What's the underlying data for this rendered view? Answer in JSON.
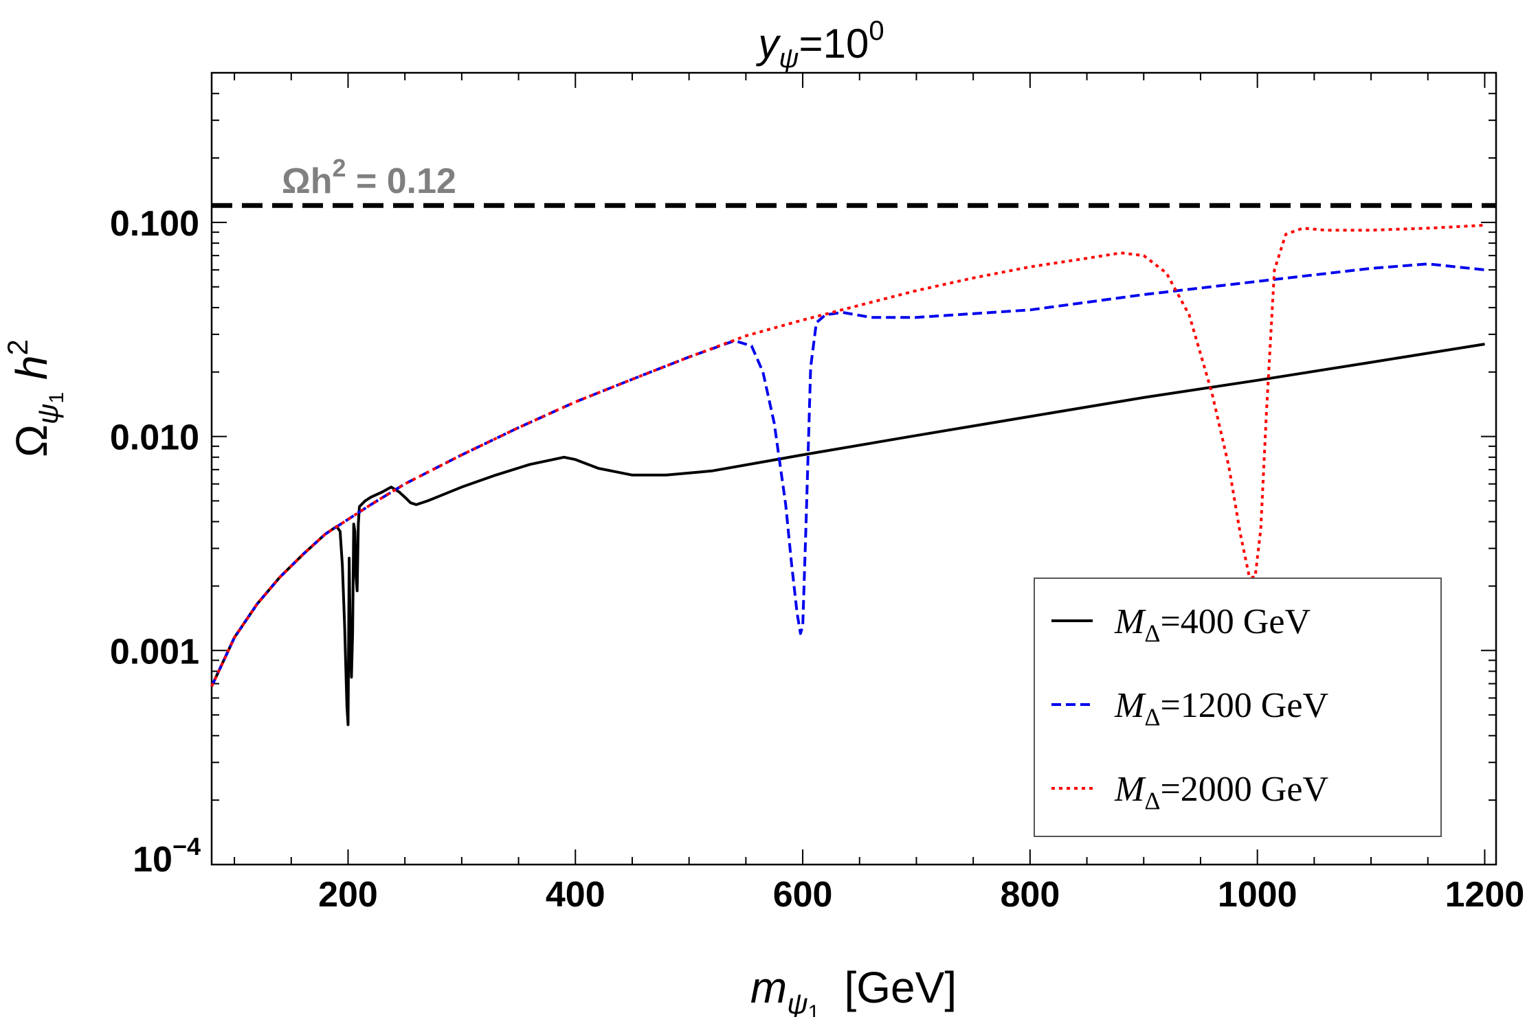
{
  "chart_data": {
    "type": "line",
    "title": {
      "main": "y",
      "sub": "ψ",
      "eq": "=10",
      "sup": "0"
    },
    "xlabel": {
      "main": "m",
      "sub": "ψ",
      "subsub": "1",
      "unit": "[GeV]"
    },
    "ylabel": {
      "main": "Ω",
      "sub": "ψ",
      "subsub": "1",
      "rest": " h",
      "sup": "2"
    },
    "xlim": [
      80,
      1210
    ],
    "ylim": [
      0.0001,
      0.5
    ],
    "yscale": "log",
    "xticks": [
      {
        "value": 200,
        "label": "200"
      },
      {
        "value": 400,
        "label": "400"
      },
      {
        "value": 600,
        "label": "600"
      },
      {
        "value": 800,
        "label": "800"
      },
      {
        "value": 1000,
        "label": "1000"
      },
      {
        "value": 1200,
        "label": "1200"
      }
    ],
    "yticks": [
      {
        "value": 0.1,
        "label": "0.100"
      },
      {
        "value": 0.01,
        "label": "0.010"
      },
      {
        "value": 0.001,
        "label": "0.001"
      }
    ],
    "ytick_bottom": {
      "value": 0.0001,
      "base": "10",
      "exp": "−4"
    },
    "reference_line": {
      "y": 0.12,
      "label_main": "Ωh",
      "label_sup": "2",
      "label_rest": " = 0.12",
      "color": "#000000"
    },
    "legend": {
      "position": "bottom-right"
    },
    "series": [
      {
        "name": "M_Δ=400 GeV",
        "label_main": "M",
        "label_sub": "Δ",
        "label_rest": "=400 GeV",
        "color": "#000000",
        "dash": "solid",
        "x": [
          80,
          100,
          120,
          140,
          160,
          180,
          190,
          193,
          195,
          197,
          199,
          200,
          201,
          202,
          203,
          204,
          205,
          206,
          207,
          208,
          209,
          210,
          215,
          220,
          230,
          238,
          245,
          250,
          255,
          260,
          270,
          300,
          330,
          360,
          390,
          400,
          420,
          450,
          480,
          520,
          600,
          700,
          800,
          900,
          1000,
          1100,
          1200
        ],
        "y": [
          0.00068,
          0.00115,
          0.00165,
          0.0022,
          0.0028,
          0.0035,
          0.0038,
          0.0036,
          0.0025,
          0.0013,
          0.00055,
          0.00045,
          0.0027,
          0.0011,
          0.00075,
          0.0012,
          0.0039,
          0.0036,
          0.0022,
          0.0019,
          0.0039,
          0.0047,
          0.005,
          0.0052,
          0.0055,
          0.0058,
          0.0055,
          0.0052,
          0.0049,
          0.0048,
          0.005,
          0.0058,
          0.0066,
          0.0074,
          0.008,
          0.0078,
          0.0071,
          0.0066,
          0.0066,
          0.0069,
          0.0082,
          0.0101,
          0.0124,
          0.0152,
          0.0183,
          0.0222,
          0.027
        ]
      },
      {
        "name": "M_Δ=1200 GeV",
        "label_main": "M",
        "label_sub": "Δ",
        "label_rest": "=1200 GeV",
        "color": "#0000ee",
        "dash": "14 7",
        "x": [
          80,
          100,
          120,
          140,
          160,
          180,
          200,
          220,
          250,
          300,
          350,
          400,
          450,
          500,
          540,
          555,
          565,
          575,
          585,
          590,
          595,
          598,
          600,
          603,
          607,
          612,
          620,
          635,
          660,
          700,
          800,
          900,
          1000,
          1100,
          1150,
          1200
        ],
        "y": [
          0.00068,
          0.00115,
          0.00165,
          0.0022,
          0.0028,
          0.0035,
          0.0041,
          0.0048,
          0.006,
          0.0082,
          0.011,
          0.0145,
          0.0185,
          0.0235,
          0.028,
          0.0265,
          0.02,
          0.0115,
          0.0048,
          0.0026,
          0.0015,
          0.0012,
          0.0013,
          0.004,
          0.021,
          0.034,
          0.037,
          0.038,
          0.036,
          0.036,
          0.039,
          0.046,
          0.053,
          0.061,
          0.064,
          0.06
        ]
      },
      {
        "name": "M_Δ=2000 GeV",
        "label_main": "M",
        "label_sub": "Δ",
        "label_rest": "=2000 GeV",
        "color": "#ff0000",
        "dash": "5 6",
        "x": [
          80,
          100,
          120,
          140,
          160,
          180,
          200,
          220,
          250,
          300,
          350,
          400,
          450,
          500,
          550,
          600,
          650,
          700,
          750,
          800,
          850,
          880,
          900,
          920,
          940,
          960,
          975,
          985,
          993,
          998,
          1003,
          1008,
          1015,
          1025,
          1040,
          1060,
          1100,
          1150,
          1200
        ],
        "y": [
          0.00068,
          0.00115,
          0.00165,
          0.0022,
          0.0028,
          0.0035,
          0.0041,
          0.0048,
          0.006,
          0.0082,
          0.011,
          0.0145,
          0.0185,
          0.0235,
          0.0295,
          0.035,
          0.041,
          0.048,
          0.055,
          0.062,
          0.068,
          0.072,
          0.07,
          0.058,
          0.037,
          0.016,
          0.0072,
          0.0035,
          0.0022,
          0.0022,
          0.0037,
          0.013,
          0.06,
          0.088,
          0.094,
          0.092,
          0.092,
          0.094,
          0.097
        ]
      }
    ]
  }
}
